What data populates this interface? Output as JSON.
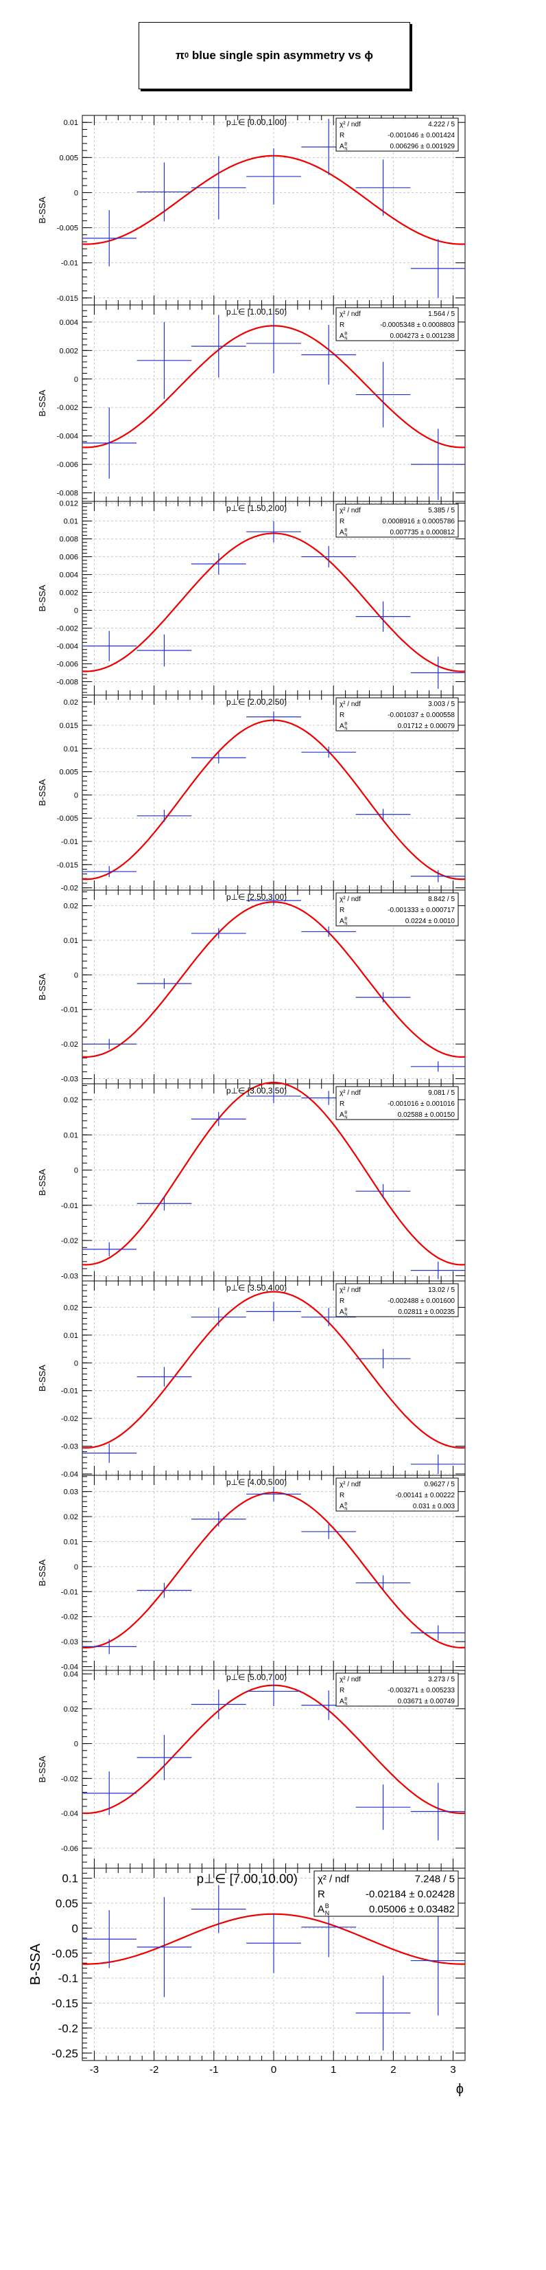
{
  "title": {
    "prefix": "π",
    "sup": "0",
    "text": " blue single spin asymmetry vs ϕ"
  },
  "colors": {
    "points": "#2233cc",
    "fit": "#ee0000",
    "grid": "#c8c8c8",
    "axis": "#000000"
  },
  "x_axis_label": "ϕ",
  "y_axis_label": "B-SSA",
  "stats_labels": {
    "chi2": "χ² / ndf",
    "R": "R",
    "A": "A",
    "A_sup": "B",
    "A_sub": "N"
  },
  "chart_data": [
    {
      "type": "scatter",
      "panel_label": "p⊥∈ [0.00,1.00)",
      "xlim": [
        -3.2,
        3.2
      ],
      "ylim": [
        -0.016,
        0.011
      ],
      "yticks": [
        -0.015,
        -0.01,
        -0.005,
        0,
        0.005,
        0.01
      ],
      "ytick_labels": [
        "-0.015",
        "-0.01",
        "-0.005",
        "0",
        "0.005",
        "0.01"
      ],
      "points": [
        {
          "x": -2.75,
          "y": -0.0065,
          "ey": 0.004
        },
        {
          "x": -1.83,
          "y": 0.0001,
          "ey": 0.0042
        },
        {
          "x": -0.92,
          "y": 0.0007,
          "ey": 0.0045
        },
        {
          "x": 0.0,
          "y": 0.0023,
          "ey": 0.004
        },
        {
          "x": 0.92,
          "y": 0.0065,
          "ey": 0.004
        },
        {
          "x": 1.83,
          "y": 0.0007,
          "ey": 0.004
        },
        {
          "x": 2.75,
          "y": -0.0108,
          "ey": 0.0042
        }
      ],
      "fit": {
        "R": -0.001046,
        "A": 0.006296
      },
      "stats": {
        "chi2": "4.222 / 5",
        "R": "-0.001046 ± 0.001424",
        "A": "0.006296 ± 0.001929"
      }
    },
    {
      "type": "scatter",
      "panel_label": "p⊥∈ [1.00,1.50)",
      "xlim": [
        -3.2,
        3.2
      ],
      "ylim": [
        -0.0086,
        0.0052
      ],
      "yticks": [
        -0.008,
        -0.006,
        -0.004,
        -0.002,
        0,
        0.002,
        0.004
      ],
      "ytick_labels": [
        "-0.008",
        "-0.006",
        "-0.004",
        "-0.002",
        "0",
        "0.002",
        "0.004"
      ],
      "points": [
        {
          "x": -2.75,
          "y": -0.0045,
          "ey": 0.0025
        },
        {
          "x": -1.83,
          "y": 0.0013,
          "ey": 0.0027
        },
        {
          "x": -0.92,
          "y": 0.0023,
          "ey": 0.0022
        },
        {
          "x": 0.0,
          "y": 0.0025,
          "ey": 0.0021
        },
        {
          "x": 0.92,
          "y": 0.0017,
          "ey": 0.0021
        },
        {
          "x": 1.83,
          "y": -0.0011,
          "ey": 0.0023
        },
        {
          "x": 2.75,
          "y": -0.006,
          "ey": 0.0025
        }
      ],
      "fit": {
        "R": -0.0005348,
        "A": 0.004273
      },
      "stats": {
        "chi2": "1.564 / 5",
        "R": "-0.0005348 ± 0.0008803",
        "A": "0.004273 ± 0.001238"
      }
    },
    {
      "type": "scatter",
      "panel_label": "p⊥∈ [1.50,2.00)",
      "xlim": [
        -3.2,
        3.2
      ],
      "ylim": [
        -0.0095,
        0.0122
      ],
      "yticks": [
        -0.008,
        -0.006,
        -0.004,
        -0.002,
        0,
        0.002,
        0.004,
        0.006,
        0.008,
        0.01,
        0.012
      ],
      "ytick_labels": [
        "-0.008",
        "-0.006",
        "-0.004",
        "-0.002",
        "0",
        "0.002",
        "0.004",
        "0.006",
        "0.008",
        "0.01",
        "0.012"
      ],
      "points": [
        {
          "x": -2.75,
          "y": -0.004,
          "ey": 0.0017
        },
        {
          "x": -1.83,
          "y": -0.0045,
          "ey": 0.0018
        },
        {
          "x": -0.92,
          "y": 0.0052,
          "ey": 0.0012
        },
        {
          "x": 0.0,
          "y": 0.0088,
          "ey": 0.0012
        },
        {
          "x": 0.92,
          "y": 0.006,
          "ey": 0.0012
        },
        {
          "x": 1.83,
          "y": -0.0007,
          "ey": 0.0017
        },
        {
          "x": 2.75,
          "y": -0.007,
          "ey": 0.0018
        }
      ],
      "fit": {
        "R": 0.0008916,
        "A": 0.007735
      },
      "stats": {
        "chi2": "5.385 / 5",
        "R": "0.0008916 ± 0.0005786",
        "A": "0.007735 ± 0.000812"
      }
    },
    {
      "type": "scatter",
      "panel_label": "p⊥∈ [2.00,2.50)",
      "xlim": [
        -3.2,
        3.2
      ],
      "ylim": [
        -0.0205,
        0.0215
      ],
      "yticks": [
        -0.02,
        -0.015,
        -0.01,
        -0.005,
        0,
        0.005,
        0.01,
        0.015,
        0.02
      ],
      "ytick_labels": [
        "-0.02",
        "-0.015",
        "-0.01",
        "-0.005",
        "0",
        "0.005",
        "0.01",
        "0.015",
        "0.02"
      ],
      "points": [
        {
          "x": -2.75,
          "y": -0.0165,
          "ey": 0.0012
        },
        {
          "x": -1.83,
          "y": -0.0045,
          "ey": 0.0013
        },
        {
          "x": -0.92,
          "y": 0.008,
          "ey": 0.0012
        },
        {
          "x": 0.0,
          "y": 0.0168,
          "ey": 0.0012
        },
        {
          "x": 0.92,
          "y": 0.0092,
          "ey": 0.0012
        },
        {
          "x": 1.83,
          "y": -0.0042,
          "ey": 0.0012
        },
        {
          "x": 2.75,
          "y": -0.0175,
          "ey": 0.0013
        }
      ],
      "fit": {
        "R": -0.001037,
        "A": 0.01712
      },
      "stats": {
        "chi2": "3.003 / 5",
        "R": "-0.001037 ± 0.000558",
        "A": "0.01712 ± 0.00079"
      }
    },
    {
      "type": "scatter",
      "panel_label": "p⊥∈ [2.50,3.00)",
      "xlim": [
        -3.2,
        3.2
      ],
      "ylim": [
        -0.0315,
        0.0245
      ],
      "yticks": [
        -0.03,
        -0.02,
        -0.01,
        0,
        0.01,
        0.02
      ],
      "ytick_labels": [
        "-0.03",
        "-0.02",
        "-0.01",
        "0",
        "0.01",
        "0.02"
      ],
      "points": [
        {
          "x": -2.75,
          "y": -0.02,
          "ey": 0.0015
        },
        {
          "x": -1.83,
          "y": -0.0025,
          "ey": 0.0015
        },
        {
          "x": -0.92,
          "y": 0.012,
          "ey": 0.0015
        },
        {
          "x": 0.0,
          "y": 0.0215,
          "ey": 0.0015
        },
        {
          "x": 0.92,
          "y": 0.0125,
          "ey": 0.0015
        },
        {
          "x": 1.83,
          "y": -0.0065,
          "ey": 0.0015
        },
        {
          "x": 2.75,
          "y": -0.0265,
          "ey": 0.0015
        }
      ],
      "fit": {
        "R": -0.001333,
        "A": 0.0224
      },
      "stats": {
        "chi2": "8.842 / 5",
        "R": "-0.001333 ± 0.000717",
        "A": "0.0224 ± 0.0010"
      }
    },
    {
      "type": "scatter",
      "panel_label": "p⊥∈ [3.00,3.50)",
      "xlim": [
        -3.2,
        3.2
      ],
      "ylim": [
        -0.0315,
        0.0245
      ],
      "yticks": [
        -0.03,
        -0.02,
        -0.01,
        0,
        0.01,
        0.02
      ],
      "ytick_labels": [
        "-0.03",
        "-0.02",
        "-0.01",
        "0",
        "0.01",
        "0.02"
      ],
      "points": [
        {
          "x": -2.75,
          "y": -0.0225,
          "ey": 0.002
        },
        {
          "x": -1.83,
          "y": -0.0095,
          "ey": 0.002
        },
        {
          "x": -0.92,
          "y": 0.0145,
          "ey": 0.002
        },
        {
          "x": 0.0,
          "y": 0.021,
          "ey": 0.002
        },
        {
          "x": 0.92,
          "y": 0.0205,
          "ey": 0.002
        },
        {
          "x": 1.83,
          "y": -0.006,
          "ey": 0.002
        },
        {
          "x": 2.75,
          "y": -0.0285,
          "ey": 0.0025
        }
      ],
      "fit": {
        "R": -0.001016,
        "A": 0.02588
      },
      "stats": {
        "chi2": "9.081 / 5",
        "R": "-0.001016 ± 0.001016",
        "A": "0.02588 ± 0.00150"
      }
    },
    {
      "type": "scatter",
      "panel_label": "p⊥∈ [3.50,4.00)",
      "xlim": [
        -3.2,
        3.2
      ],
      "ylim": [
        -0.0405,
        0.0295
      ],
      "yticks": [
        -0.04,
        -0.03,
        -0.02,
        -0.01,
        0,
        0.01,
        0.02
      ],
      "ytick_labels": [
        "-0.04",
        "-0.03",
        "-0.02",
        "-0.01",
        "0",
        "0.01",
        "0.02"
      ],
      "points": [
        {
          "x": -2.75,
          "y": -0.0325,
          "ey": 0.0035
        },
        {
          "x": -1.83,
          "y": -0.005,
          "ey": 0.0035
        },
        {
          "x": -0.92,
          "y": 0.0165,
          "ey": 0.0033
        },
        {
          "x": 0.0,
          "y": 0.0185,
          "ey": 0.0035
        },
        {
          "x": 0.92,
          "y": 0.0165,
          "ey": 0.0033
        },
        {
          "x": 1.83,
          "y": 0.0015,
          "ey": 0.0035
        },
        {
          "x": 2.75,
          "y": -0.0365,
          "ey": 0.0035
        }
      ],
      "fit": {
        "R": -0.002488,
        "A": 0.02811
      },
      "stats": {
        "chi2": "13.02 / 5",
        "R": "-0.002488 ± 0.001600",
        "A": "0.02811 ± 0.00235"
      }
    },
    {
      "type": "scatter",
      "panel_label": "p⊥∈ [4.00,5.00)",
      "xlim": [
        -3.2,
        3.2
      ],
      "ylim": [
        -0.0415,
        0.0365
      ],
      "yticks": [
        -0.04,
        -0.03,
        -0.02,
        -0.01,
        0,
        0.01,
        0.02,
        0.03
      ],
      "ytick_labels": [
        "-0.04",
        "-0.03",
        "-0.02",
        "-0.01",
        "0",
        "0.01",
        "0.02",
        "0.03"
      ],
      "points": [
        {
          "x": -2.75,
          "y": -0.032,
          "ey": 0.003
        },
        {
          "x": -1.83,
          "y": -0.0095,
          "ey": 0.003
        },
        {
          "x": -0.92,
          "y": 0.019,
          "ey": 0.003
        },
        {
          "x": 0.0,
          "y": 0.029,
          "ey": 0.003
        },
        {
          "x": 0.92,
          "y": 0.014,
          "ey": 0.003
        },
        {
          "x": 1.83,
          "y": -0.0065,
          "ey": 0.003
        },
        {
          "x": 2.75,
          "y": -0.0265,
          "ey": 0.003
        }
      ],
      "fit": {
        "R": -0.00141,
        "A": 0.031
      },
      "stats": {
        "chi2": "0.9627 / 5",
        "R": "-0.00141 ± 0.00222",
        "A": "0.031 ± 0.003"
      }
    },
    {
      "type": "scatter",
      "panel_label": "p⊥∈ [5.00,7.00)",
      "xlim": [
        -3.2,
        3.2
      ],
      "ylim": [
        -0.0715,
        0.042
      ],
      "yticks": [
        -0.06,
        -0.04,
        -0.02,
        0,
        0.02,
        0.04
      ],
      "ytick_labels": [
        "-0.06",
        "-0.04",
        "-0.02",
        "0",
        "0.02",
        "0.04"
      ],
      "points": [
        {
          "x": -2.75,
          "y": -0.0285,
          "ey": 0.0125
        },
        {
          "x": -1.83,
          "y": -0.008,
          "ey": 0.013
        },
        {
          "x": -0.92,
          "y": 0.0225,
          "ey": 0.0085
        },
        {
          "x": 0.0,
          "y": 0.03,
          "ey": 0.0085
        },
        {
          "x": 0.92,
          "y": 0.022,
          "ey": 0.0085
        },
        {
          "x": 1.83,
          "y": -0.0365,
          "ey": 0.013
        },
        {
          "x": 2.75,
          "y": -0.039,
          "ey": 0.0165
        }
      ],
      "fit": {
        "R": -0.003271,
        "A": 0.03671
      },
      "stats": {
        "chi2": "3.273 / 5",
        "R": "-0.003271 ± 0.005233",
        "A": "0.03671 ± 0.00749"
      }
    },
    {
      "type": "scatter",
      "panel_label": "p⊥∈ [7.00,10.00)",
      "xlim": [
        -3.2,
        3.2
      ],
      "ylim": [
        -0.265,
        0.12
      ],
      "yticks": [
        -0.25,
        -0.2,
        -0.15,
        -0.1,
        -0.05,
        0,
        0.05,
        0.1
      ],
      "ytick_labels": [
        "-0.25",
        "-0.2",
        "-0.15",
        "-0.1",
        "-0.05",
        "0",
        "0.05",
        "0.1"
      ],
      "xticks": [
        -3,
        -2,
        -1,
        0,
        1,
        2,
        3
      ],
      "xtick_labels": [
        "-3",
        "-2",
        "-1",
        "0",
        "1",
        "2",
        "3"
      ],
      "points": [
        {
          "x": -2.75,
          "y": -0.022,
          "ey": 0.058
        },
        {
          "x": -1.83,
          "y": -0.038,
          "ey": 0.1
        },
        {
          "x": -0.92,
          "y": 0.038,
          "ey": 0.048
        },
        {
          "x": 0.0,
          "y": -0.03,
          "ey": 0.06
        },
        {
          "x": 0.92,
          "y": 0.002,
          "ey": 0.06
        },
        {
          "x": 1.83,
          "y": -0.17,
          "ey": 0.075
        },
        {
          "x": 2.75,
          "y": -0.065,
          "ey": 0.11
        }
      ],
      "fit": {
        "R": -0.02184,
        "A": 0.05006
      },
      "stats": {
        "chi2": "7.248 / 5",
        "R": "-0.02184 ± 0.02428",
        "A": "0.05006 ± 0.03482"
      }
    }
  ]
}
